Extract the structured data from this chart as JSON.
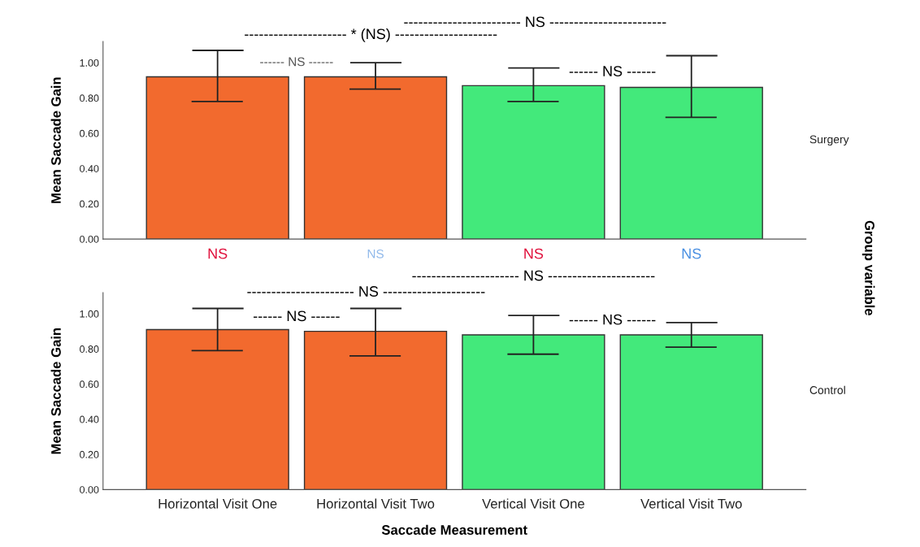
{
  "chart_data": [
    {
      "type": "bar",
      "title": "Surgery",
      "ylabel": "Mean Saccade Gain",
      "y2label": "Group variable",
      "categories": [
        null,
        null,
        null,
        null
      ],
      "values": [
        0.92,
        0.92,
        0.87,
        0.86
      ],
      "colors": [
        "#f26a2e",
        "#f26a2e",
        "#43e97b",
        "#43e97b"
      ],
      "errors": [
        [
          0.78,
          1.07
        ],
        [
          0.85,
          1.0
        ],
        [
          0.78,
          0.97
        ],
        [
          0.69,
          1.04
        ]
      ],
      "ylim": [
        0,
        1.12
      ],
      "yticks": [
        {
          "value": 0,
          "label": "0.00"
        },
        {
          "value": 0.2,
          "label": "0.20"
        },
        {
          "value": 0.4,
          "label": "0.40"
        },
        {
          "value": 0.6,
          "label": "0.60"
        },
        {
          "value": 0.8,
          "label": "0.80"
        },
        {
          "value": 1.0,
          "label": "1.00"
        }
      ],
      "tick_labels": "y",
      "grid": false,
      "legend": false,
      "annotations": [
        "------ NS ------",
        "------ NS ------",
        "--------------------- * (NS) ---------------------",
        "------------------------ NS ------------------------",
        "NS",
        "NS",
        "NS",
        "NS"
      ]
    },
    {
      "type": "bar",
      "title": "Control",
      "ylabel": "Mean Saccade Gain",
      "xlabel": "Saccade Measurement",
      "categories": [
        "Horizontal Visit One",
        "Horizontal Visit Two",
        "Vertical Visit One",
        "Vertical Visit Two"
      ],
      "values": [
        0.91,
        0.9,
        0.88,
        0.88
      ],
      "colors": [
        "#f26a2e",
        "#f26a2e",
        "#43e97b",
        "#43e97b"
      ],
      "errors": [
        [
          0.79,
          1.03
        ],
        [
          0.76,
          1.03
        ],
        [
          0.77,
          0.99
        ],
        [
          0.81,
          0.95
        ]
      ],
      "ylim": [
        0,
        1.12
      ],
      "yticks": [
        {
          "value": 0,
          "label": "0.00"
        },
        {
          "value": 0.2,
          "label": "0.20"
        },
        {
          "value": 0.4,
          "label": "0.40"
        },
        {
          "value": 0.6,
          "label": "0.60"
        },
        {
          "value": 0.8,
          "label": "0.80"
        },
        {
          "value": 1.0,
          "label": "1.00"
        }
      ],
      "grid": false,
      "legend": false,
      "annotations": [
        "------ NS ------",
        "------ NS ------",
        "---------------------- NS ---------------------",
        "---------------------- NS ----------------------"
      ]
    }
  ]
}
